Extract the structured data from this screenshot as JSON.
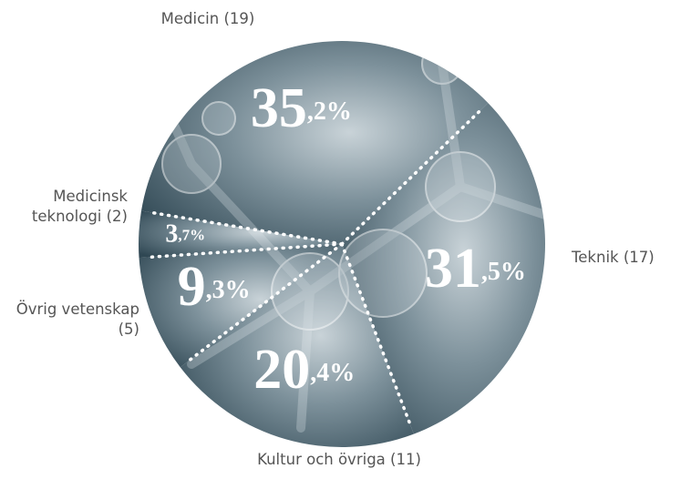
{
  "chart_data": {
    "type": "pie",
    "categories": [
      "Teknik (17)",
      "Kultur och övriga (11)",
      "Övrig vetenskap (5)",
      "Medicinsk teknologi (2)",
      "Medicin (19)"
    ],
    "values": [
      31.5,
      20.4,
      9.3,
      3.7,
      35.2
    ],
    "value_labels": [
      "31,5%",
      "20,4%",
      "9,3%",
      "3,7%",
      "35,2%"
    ]
  }
}
